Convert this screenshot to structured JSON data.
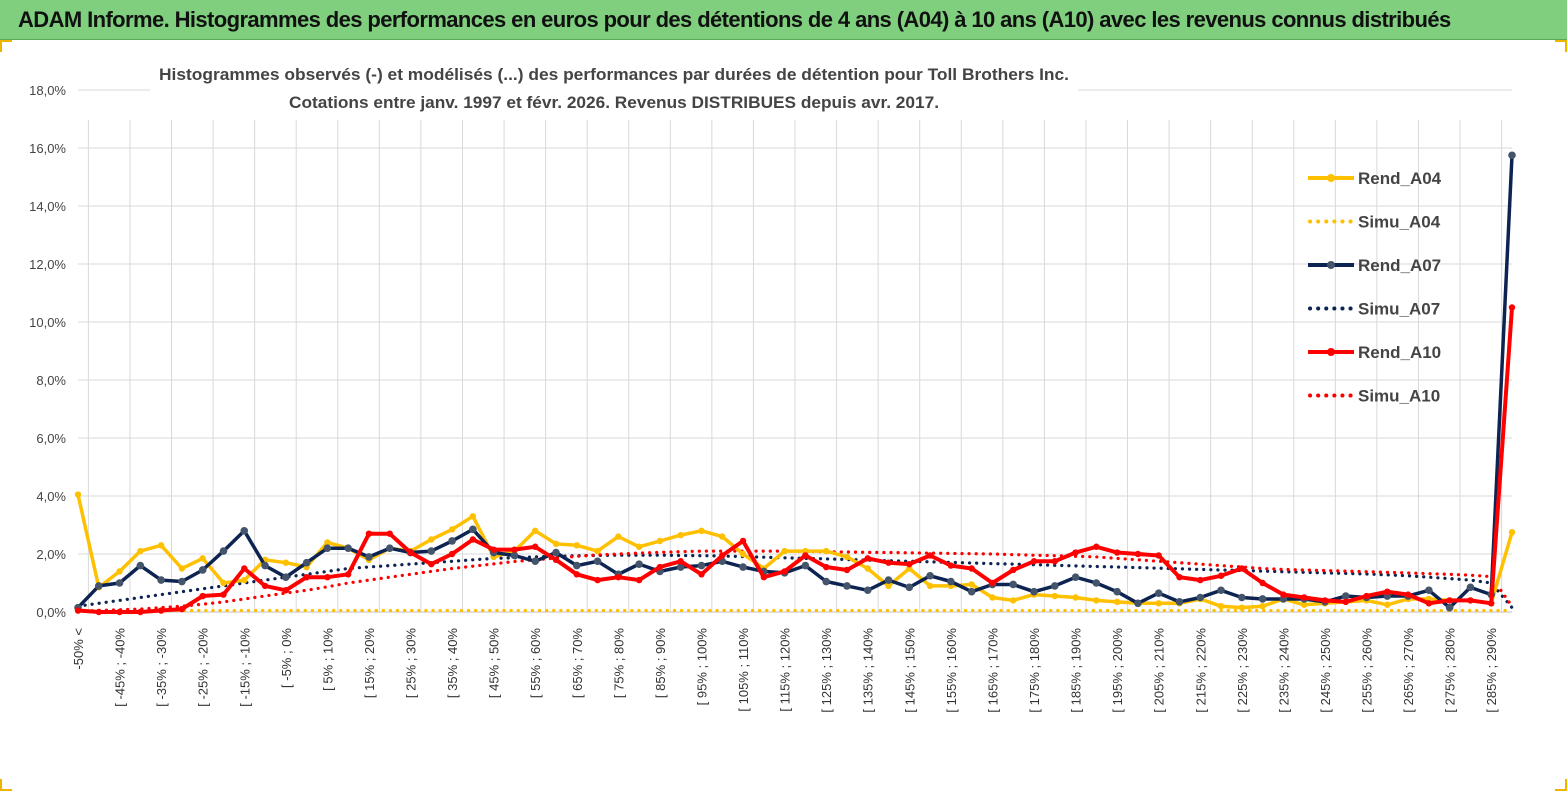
{
  "header": {
    "title": "ADAM Informe. Histogrammes des performances en euros pour des détentions de 4 ans (A04) à 10 ans (A10) avec les revenus connus distribués"
  },
  "chart_data": {
    "type": "line",
    "title_lines": [
      "Histogrammes observés (-) et modélisés (...) des performances par durées de détention pour Toll Brothers Inc.",
      "Cotations entre janv. 1997 et févr. 2026. Revenus DISTRIBUES depuis avr. 2017."
    ],
    "xlabel": "",
    "ylabel": "",
    "ylim": [
      0,
      18
    ],
    "yticks": [
      "0,0%",
      "2,0%",
      "4,0%",
      "6,0%",
      "8,0%",
      "10,0%",
      "12,0%",
      "14,0%",
      "16,0%",
      "18,0%"
    ],
    "tick_labels": [
      "-50% <",
      "[ -45% ; -40%",
      "[ -35% ; -30%",
      "[ -25% ; -20%",
      "[ -15% ; -10%",
      "[ -5% ; 0%",
      "[ 5% ; 10%",
      "[ 15% ; 20%",
      "[ 25% ; 30%",
      "[ 35% ; 40%",
      "[ 45% ; 50%",
      "[ 55% ; 60%",
      "[ 65% ; 70%",
      "[ 75% ; 80%",
      "[ 85% ; 90%",
      "[ 95% ; 100%",
      "[ 105% ; 110%",
      "[ 115% ; 120%",
      "[ 125% ; 130%",
      "[ 135% ; 140%",
      "[ 145% ; 150%",
      "[ 155% ; 160%",
      "[ 165% ; 170%",
      "[ 175% ; 180%",
      "[ 185% ; 190%",
      "[ 195% ; 200%",
      "[ 205% ; 210%",
      "[ 215% ; 220%",
      "[ 225% ; 230%",
      "[ 235% ; 240%",
      "[ 245% ; 250%",
      "[ 255% ; 260%",
      "[ 265% ; 270%",
      "[ 275% ; 280%",
      "[ 285% ; 290%"
    ],
    "n_points": 70,
    "grid": true,
    "legend_position": "right",
    "series": [
      {
        "name": "Rend_A04",
        "style": "solid",
        "color": "#ffc000",
        "values": [
          4.05,
          0.85,
          1.4,
          2.1,
          2.3,
          1.5,
          1.85,
          1.0,
          1.1,
          1.8,
          1.7,
          1.55,
          2.4,
          2.2,
          1.8,
          2.2,
          2.1,
          2.5,
          2.85,
          3.3,
          1.9,
          2.1,
          2.8,
          2.35,
          2.3,
          2.1,
          2.6,
          2.25,
          2.45,
          2.65,
          2.8,
          2.6,
          2.0,
          1.5,
          2.1,
          2.1,
          2.1,
          1.9,
          1.5,
          0.9,
          1.5,
          0.9,
          0.9,
          0.95,
          0.5,
          0.4,
          0.6,
          0.55,
          0.5,
          0.4,
          0.35,
          0.3,
          0.3,
          0.3,
          0.45,
          0.2,
          0.15,
          0.2,
          0.45,
          0.25,
          0.3,
          0.35,
          0.4,
          0.25,
          0.45,
          0.45,
          0.4,
          0.4,
          0.3,
          2.75
        ]
      },
      {
        "name": "Simu_A04",
        "style": "dotted",
        "color": "#ffc000",
        "values": [
          0.05,
          0.05,
          0.05,
          0.05,
          0.05,
          0.05,
          0.05,
          0.05,
          0.05,
          0.05,
          0.05,
          0.05,
          0.05,
          0.05,
          0.05,
          0.05,
          0.05,
          0.05,
          0.05,
          0.05,
          0.05,
          0.05,
          0.05,
          0.05,
          0.05,
          0.05,
          0.05,
          0.05,
          0.05,
          0.05,
          0.05,
          0.05,
          0.05,
          0.05,
          0.05,
          0.05,
          0.05,
          0.05,
          0.05,
          0.05,
          0.05,
          0.05,
          0.05,
          0.05,
          0.05,
          0.05,
          0.05,
          0.05,
          0.05,
          0.05,
          0.05,
          0.05,
          0.05,
          0.05,
          0.05,
          0.05,
          0.05,
          0.05,
          0.05,
          0.05,
          0.05,
          0.05,
          0.05,
          0.05,
          0.05,
          0.05,
          0.05,
          0.05,
          0.05,
          0.05
        ]
      },
      {
        "name": "Rend_A07",
        "style": "solid",
        "color": "#0d2452",
        "values": [
          0.15,
          0.9,
          1.0,
          1.6,
          1.1,
          1.05,
          1.45,
          2.1,
          2.8,
          1.6,
          1.2,
          1.7,
          2.2,
          2.2,
          1.9,
          2.2,
          2.05,
          2.1,
          2.45,
          2.85,
          2.05,
          1.95,
          1.75,
          2.05,
          1.6,
          1.75,
          1.3,
          1.65,
          1.4,
          1.55,
          1.6,
          1.75,
          1.55,
          1.4,
          1.35,
          1.6,
          1.05,
          0.9,
          0.75,
          1.1,
          0.85,
          1.25,
          1.05,
          0.7,
          0.95,
          0.95,
          0.7,
          0.9,
          1.2,
          1.0,
          0.7,
          0.3,
          0.65,
          0.35,
          0.5,
          0.75,
          0.5,
          0.45,
          0.45,
          0.45,
          0.35,
          0.55,
          0.5,
          0.55,
          0.55,
          0.75,
          0.15,
          0.85,
          0.6,
          15.75
        ]
      },
      {
        "name": "Simu_A07",
        "style": "dotted",
        "color": "#0d2452",
        "values": [
          0.2,
          0.3,
          0.4,
          0.5,
          0.6,
          0.7,
          0.8,
          0.9,
          1.0,
          1.1,
          1.2,
          1.3,
          1.4,
          1.5,
          1.55,
          1.6,
          1.65,
          1.7,
          1.75,
          1.8,
          1.85,
          1.87,
          1.9,
          1.92,
          1.94,
          1.95,
          1.96,
          1.96,
          1.96,
          1.95,
          1.94,
          1.93,
          1.91,
          1.89,
          1.87,
          1.85,
          1.83,
          1.81,
          1.79,
          1.77,
          1.75,
          1.73,
          1.71,
          1.69,
          1.67,
          1.65,
          1.63,
          1.61,
          1.59,
          1.57,
          1.55,
          1.53,
          1.51,
          1.49,
          1.47,
          1.45,
          1.43,
          1.41,
          1.39,
          1.37,
          1.35,
          1.33,
          1.31,
          1.28,
          1.25,
          1.2,
          1.15,
          1.1,
          1.0,
          0.15
        ]
      },
      {
        "name": "Rend_A10",
        "style": "solid",
        "color": "#ff0000",
        "values": [
          0.05,
          0.0,
          0.0,
          0.0,
          0.05,
          0.1,
          0.55,
          0.6,
          1.5,
          0.9,
          0.75,
          1.2,
          1.2,
          1.3,
          2.7,
          2.7,
          2.05,
          1.65,
          2.0,
          2.5,
          2.15,
          2.15,
          2.25,
          1.8,
          1.3,
          1.1,
          1.2,
          1.1,
          1.55,
          1.75,
          1.3,
          1.95,
          2.45,
          1.2,
          1.4,
          1.95,
          1.55,
          1.45,
          1.85,
          1.7,
          1.65,
          1.95,
          1.6,
          1.5,
          1.0,
          1.45,
          1.75,
          1.75,
          2.05,
          2.25,
          2.05,
          2.0,
          1.95,
          1.2,
          1.1,
          1.25,
          1.5,
          1.0,
          0.6,
          0.5,
          0.4,
          0.35,
          0.55,
          0.7,
          0.6,
          0.3,
          0.4,
          0.4,
          0.3,
          10.5
        ]
      },
      {
        "name": "Simu_A10",
        "style": "dotted",
        "color": "#ff0000",
        "values": [
          0.02,
          0.05,
          0.08,
          0.1,
          0.15,
          0.2,
          0.27,
          0.35,
          0.45,
          0.55,
          0.65,
          0.75,
          0.87,
          1.0,
          1.1,
          1.2,
          1.3,
          1.4,
          1.5,
          1.58,
          1.66,
          1.74,
          1.8,
          1.86,
          1.92,
          1.97,
          2.0,
          2.03,
          2.06,
          2.08,
          2.1,
          2.1,
          2.1,
          2.1,
          2.1,
          2.09,
          2.08,
          2.07,
          2.06,
          2.05,
          2.04,
          2.03,
          2.02,
          2.01,
          2.0,
          1.98,
          1.96,
          1.94,
          1.92,
          1.9,
          1.85,
          1.8,
          1.75,
          1.7,
          1.65,
          1.6,
          1.55,
          1.5,
          1.47,
          1.45,
          1.43,
          1.41,
          1.39,
          1.37,
          1.35,
          1.32,
          1.3,
          1.27,
          1.22,
          0.2
        ]
      }
    ]
  }
}
